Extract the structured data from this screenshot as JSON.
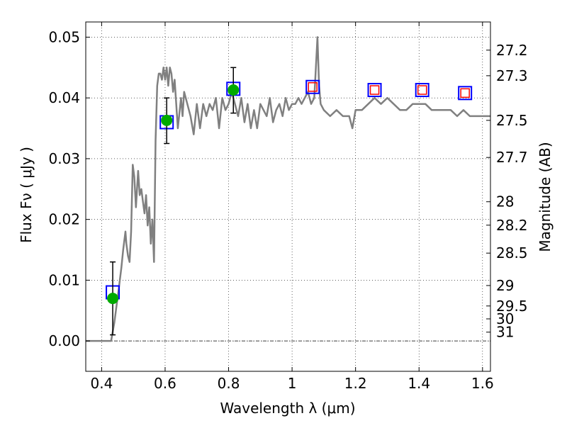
{
  "chart_data": {
    "type": "line",
    "xlabel": "Wavelength  λ (μm)",
    "ylabel": "Flux  Fν  ( μJy )",
    "y2label": "Magnitude (AB)",
    "xlim": [
      0.35,
      1.625
    ],
    "ylim": [
      -0.005,
      0.0525
    ],
    "x_ticks": [
      {
        "v": 0.4,
        "label": "0.4"
      },
      {
        "v": 0.6,
        "label": "0.6"
      },
      {
        "v": 0.8,
        "label": "0.8"
      },
      {
        "v": 1.0,
        "label": "1"
      },
      {
        "v": 1.2,
        "label": "1.2"
      },
      {
        "v": 1.4,
        "label": "1.4"
      },
      {
        "v": 1.6,
        "label": "1.6"
      }
    ],
    "y_ticks": [
      {
        "v": 0.0,
        "label": "0.00"
      },
      {
        "v": 0.01,
        "label": "0.01"
      },
      {
        "v": 0.02,
        "label": "0.02"
      },
      {
        "v": 0.03,
        "label": "0.03"
      },
      {
        "v": 0.04,
        "label": "0.04"
      },
      {
        "v": 0.05,
        "label": "0.05"
      }
    ],
    "mag_ticks": [
      {
        "mag": 27.2,
        "label": "27.2"
      },
      {
        "mag": 27.3,
        "label": "27.3"
      },
      {
        "mag": 27.5,
        "label": "27.5"
      },
      {
        "mag": 27.7,
        "label": "27.7"
      },
      {
        "mag": 28,
        "label": "28"
      },
      {
        "mag": 28.2,
        "label": "28.2"
      },
      {
        "mag": 28.5,
        "label": "28.5"
      },
      {
        "mag": 29,
        "label": "29"
      },
      {
        "mag": 29.5,
        "label": "29.5"
      },
      {
        "mag": 30,
        "label": "30"
      },
      {
        "mag": 31,
        "label": "31"
      }
    ],
    "grid": true,
    "model_sed": {
      "color": "#808080",
      "x": [
        0.35,
        0.43,
        0.44,
        0.455,
        0.462,
        0.468,
        0.475,
        0.478,
        0.483,
        0.488,
        0.493,
        0.498,
        0.503,
        0.508,
        0.515,
        0.52,
        0.525,
        0.53,
        0.535,
        0.54,
        0.545,
        0.55,
        0.555,
        0.56,
        0.565,
        0.57,
        0.575,
        0.58,
        0.585,
        0.59,
        0.595,
        0.6,
        0.605,
        0.61,
        0.615,
        0.62,
        0.625,
        0.63,
        0.64,
        0.65,
        0.655,
        0.66,
        0.67,
        0.68,
        0.69,
        0.7,
        0.71,
        0.72,
        0.73,
        0.74,
        0.75,
        0.76,
        0.77,
        0.78,
        0.79,
        0.8,
        0.81,
        0.82,
        0.83,
        0.84,
        0.85,
        0.86,
        0.87,
        0.88,
        0.89,
        0.9,
        0.91,
        0.92,
        0.93,
        0.94,
        0.95,
        0.96,
        0.97,
        0.98,
        0.99,
        1.0,
        1.01,
        1.02,
        1.03,
        1.04,
        1.05,
        1.06,
        1.07,
        1.075,
        1.08,
        1.085,
        1.09,
        1.1,
        1.12,
        1.14,
        1.16,
        1.18,
        1.19,
        1.2,
        1.22,
        1.24,
        1.26,
        1.28,
        1.3,
        1.32,
        1.34,
        1.36,
        1.38,
        1.4,
        1.42,
        1.44,
        1.46,
        1.48,
        1.5,
        1.52,
        1.54,
        1.56,
        1.58,
        1.6,
        1.625
      ],
      "y": [
        0.0,
        0.0,
        0.003,
        0.009,
        0.012,
        0.015,
        0.018,
        0.016,
        0.014,
        0.013,
        0.018,
        0.029,
        0.027,
        0.022,
        0.028,
        0.024,
        0.025,
        0.023,
        0.021,
        0.024,
        0.019,
        0.022,
        0.016,
        0.02,
        0.013,
        0.033,
        0.042,
        0.044,
        0.044,
        0.043,
        0.045,
        0.043,
        0.045,
        0.042,
        0.045,
        0.044,
        0.041,
        0.043,
        0.035,
        0.04,
        0.037,
        0.041,
        0.039,
        0.037,
        0.034,
        0.039,
        0.035,
        0.039,
        0.037,
        0.039,
        0.038,
        0.04,
        0.035,
        0.04,
        0.038,
        0.039,
        0.041,
        0.039,
        0.037,
        0.04,
        0.036,
        0.039,
        0.035,
        0.038,
        0.035,
        0.039,
        0.038,
        0.037,
        0.04,
        0.036,
        0.038,
        0.039,
        0.037,
        0.04,
        0.038,
        0.039,
        0.039,
        0.04,
        0.039,
        0.04,
        0.041,
        0.039,
        0.04,
        0.045,
        0.05,
        0.042,
        0.039,
        0.038,
        0.037,
        0.038,
        0.037,
        0.037,
        0.035,
        0.038,
        0.038,
        0.039,
        0.04,
        0.039,
        0.04,
        0.039,
        0.038,
        0.038,
        0.039,
        0.039,
        0.039,
        0.038,
        0.038,
        0.038,
        0.038,
        0.037,
        0.038,
        0.037,
        0.037,
        0.037,
        0.037
      ]
    },
    "model_points": {
      "marker": "square",
      "edge_color": "#0000ff",
      "x": [
        0.435,
        0.605,
        0.815,
        1.065,
        1.26,
        1.41,
        1.545
      ],
      "y": [
        0.008,
        0.036,
        0.0415,
        0.0418,
        0.0413,
        0.0413,
        0.0408
      ]
    },
    "upper_limits": {
      "marker": "square",
      "edge_color": "#ff0000",
      "x": [
        1.065,
        1.26,
        1.41,
        1.545
      ],
      "y": [
        0.0418,
        0.0413,
        0.0413,
        0.0408
      ]
    },
    "observed": {
      "marker": "circle",
      "color": "#00aa00",
      "x": [
        0.435,
        0.605,
        0.815
      ],
      "y": [
        0.007,
        0.0363,
        0.0413
      ],
      "yerr_low": [
        0.001,
        0.0325,
        0.0375
      ],
      "yerr_high": [
        0.013,
        0.04,
        0.045
      ]
    }
  }
}
